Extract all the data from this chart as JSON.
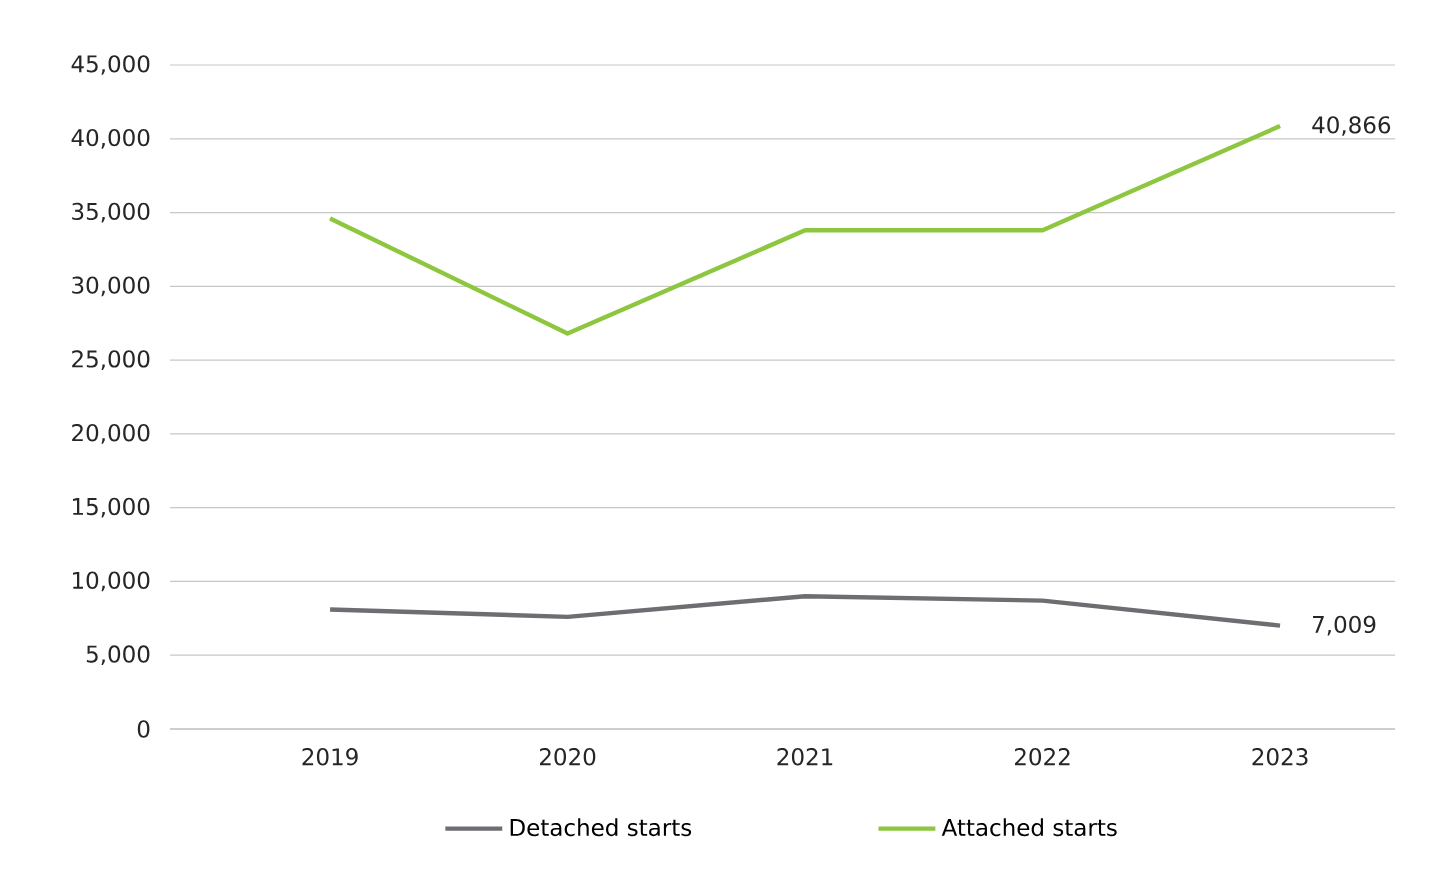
{
  "chart_data": {
    "type": "line",
    "categories": [
      "2019",
      "2020",
      "2021",
      "2022",
      "2023"
    ],
    "series": [
      {
        "name": "Detached starts",
        "color": "#6d6e71",
        "values": [
          8100,
          7600,
          9000,
          8700,
          7009
        ],
        "value_labels": [
          null,
          null,
          null,
          null,
          "7,009"
        ]
      },
      {
        "name": "Attached starts",
        "color": "#8dc63f",
        "values": [
          34600,
          26800,
          33800,
          33800,
          40866
        ],
        "value_labels": [
          null,
          null,
          null,
          null,
          "40,866"
        ]
      }
    ],
    "ylim": [
      0,
      45000
    ],
    "yticks": [
      {
        "value": 0,
        "label": "0"
      },
      {
        "value": 5000,
        "label": "5,000"
      },
      {
        "value": 10000,
        "label": "10,000"
      },
      {
        "value": 15000,
        "label": "15,000"
      },
      {
        "value": 20000,
        "label": "20,000"
      },
      {
        "value": 25000,
        "label": "25,000"
      },
      {
        "value": 30000,
        "label": "30,000"
      },
      {
        "value": 35000,
        "label": "35,000"
      },
      {
        "value": 40000,
        "label": "40,000"
      },
      {
        "value": 45000,
        "label": "45,000"
      }
    ],
    "grid": "y",
    "legend": "bottom",
    "marker": "none",
    "line_style": "solid"
  }
}
